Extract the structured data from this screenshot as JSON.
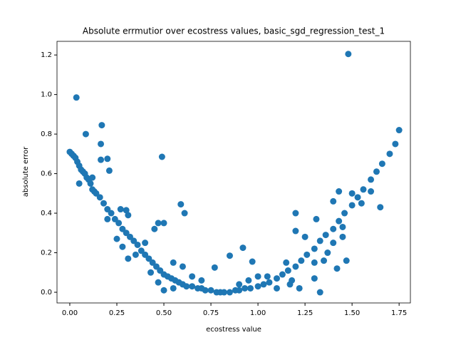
{
  "chart_data": {
    "type": "scatter",
    "title": "Absolute errmutior over ecostress values, basic_sgd_regression_test_1",
    "x_label": "ecostress value",
    "y_label": "absolute error",
    "color": "#1f77b4",
    "x": [
      0,
      0.01,
      0.02,
      0.03,
      0.04,
      0.05,
      0.06,
      0.07,
      0.08,
      0.09,
      0.1,
      0.11,
      0.12,
      0.13,
      0.14,
      0.16,
      0.18,
      0.2,
      0.22,
      0.24,
      0.26,
      0.28,
      0.3,
      0.32,
      0.34,
      0.36,
      0.38,
      0.4,
      0.42,
      0.44,
      0.46,
      0.48,
      0.5,
      0.52,
      0.54,
      0.56,
      0.58,
      0.6,
      0.62,
      0.65,
      0.68,
      0.7,
      0.72,
      0.75,
      0.78,
      0.8,
      0.82,
      0.85,
      0.88,
      0.9,
      0.93,
      0.96,
      1.0,
      1.03,
      1.06,
      1.1,
      1.13,
      1.16,
      1.2,
      1.23,
      1.26,
      1.3,
      1.33,
      1.36,
      1.4,
      1.43,
      1.46,
      1.5,
      1.53,
      1.56,
      1.6,
      1.63,
      1.66,
      1.7,
      1.73,
      1.75,
      0.035,
      0.085,
      0.17,
      0.165,
      0.165,
      0.2,
      0.21,
      0.49,
      0.59,
      0.61,
      1.48,
      1.65,
      1.2,
      1.2,
      1.31,
      1.43,
      1.33,
      1.3,
      0.92,
      0.85,
      0.97,
      0.77,
      0.47,
      0.5,
      0.45,
      0.3,
      0.27,
      0.31,
      0.28,
      0.31,
      1.47,
      1.42,
      1.4,
      1.37,
      1.17,
      1.22,
      0.05,
      0.12,
      0.2,
      0.25,
      0.35,
      0.4,
      0.43,
      0.47,
      0.5,
      0.55,
      0.6,
      0.65,
      0.7,
      0.55,
      1.05,
      1.1,
      1.15,
      1.25,
      1.3,
      1.35,
      1.4,
      1.45,
      1.5,
      1.55,
      1.6,
      1.45,
      1.18,
      0.95,
      0.9,
      1.0
    ],
    "values": [
      0.71,
      0.7,
      0.69,
      0.68,
      0.66,
      0.64,
      0.62,
      0.61,
      0.6,
      0.58,
      0.57,
      0.55,
      0.52,
      0.51,
      0.5,
      0.48,
      0.45,
      0.42,
      0.4,
      0.37,
      0.35,
      0.32,
      0.3,
      0.28,
      0.26,
      0.24,
      0.21,
      0.19,
      0.17,
      0.15,
      0.13,
      0.11,
      0.09,
      0.08,
      0.07,
      0.06,
      0.05,
      0.04,
      0.03,
      0.03,
      0.02,
      0.02,
      0.01,
      0.01,
      0,
      0,
      0,
      0,
      0.01,
      0.01,
      0.02,
      0.02,
      0.03,
      0.04,
      0.05,
      0.07,
      0.09,
      0.11,
      0.13,
      0.16,
      0.19,
      0.22,
      0.26,
      0.29,
      0.32,
      0.36,
      0.4,
      0.44,
      0.48,
      0.52,
      0.57,
      0.61,
      0.65,
      0.7,
      0.75,
      0.82,
      0.985,
      0.8,
      0.845,
      0.75,
      0.67,
      0.675,
      0.615,
      0.685,
      0.445,
      0.4,
      1.205,
      0.43,
      0.4,
      0.31,
      0.37,
      0.51,
      0,
      0.07,
      0.225,
      0.185,
      0.155,
      0.125,
      0.35,
      0.35,
      0.32,
      0.415,
      0.42,
      0.39,
      0.23,
      0.17,
      0.16,
      0.12,
      0.46,
      0.2,
      0.04,
      0.02,
      0.55,
      0.58,
      0.37,
      0.27,
      0.19,
      0.25,
      0.1,
      0.05,
      0.01,
      0.15,
      0.13,
      0.08,
      0.06,
      0.02,
      0.08,
      0.02,
      0.15,
      0.28,
      0.15,
      0.16,
      0.25,
      0.33,
      0.5,
      0.45,
      0.51,
      0.28,
      0.06,
      0.06,
      0.04,
      0.08
    ],
    "xlim": [
      -0.068,
      1.81
    ],
    "ylim": [
      -0.054,
      1.269
    ],
    "xticks": [
      {
        "value": 0,
        "label": "0.00"
      },
      0.25,
      {
        "value": 0.5,
        "label": "0.50"
      },
      0.75,
      {
        "value": 1,
        "label": "1.00"
      },
      1.25,
      {
        "value": 1.5,
        "label": "1.50"
      },
      1.75
    ],
    "yticks": [
      {
        "value": 0,
        "label": "0.0"
      },
      0.2,
      0.4,
      0.6,
      0.8,
      {
        "value": 1,
        "label": "1.0"
      },
      1.2
    ]
  }
}
